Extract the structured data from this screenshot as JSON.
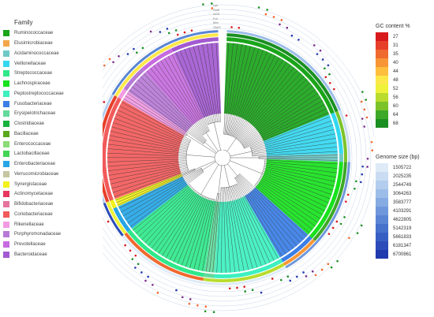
{
  "family_legend": {
    "title": "Family",
    "items": [
      {
        "label": "Ruminococcaceae",
        "color": "#1aa51a"
      },
      {
        "label": "Elusimicrobiaceae",
        "color": "#f2a64a"
      },
      {
        "label": "Acidaminococcaceae",
        "color": "#6ec9c6"
      },
      {
        "label": "Veillonellaceae",
        "color": "#34d7f0"
      },
      {
        "label": "Streptococcaceae",
        "color": "#2fe88a"
      },
      {
        "label": "Lachnospiraceae",
        "color": "#17e21d"
      },
      {
        "label": "Peptostreptococcaceae",
        "color": "#3df0c0"
      },
      {
        "label": "Fusobacteriaceae",
        "color": "#3a7ee6"
      },
      {
        "label": "Erysipelotrichaceae",
        "color": "#63d99b"
      },
      {
        "label": "Clostridiaceae",
        "color": "#19b23c"
      },
      {
        "label": "Bacillaceae",
        "color": "#5aa819"
      },
      {
        "label": "Enterococcaceae",
        "color": "#8bdc76"
      },
      {
        "label": "Lactobacillaceae",
        "color": "#41d653"
      },
      {
        "label": "Enterobacteriaceae",
        "color": "#26a6e6"
      },
      {
        "label": "Verrucomicrobiaceae",
        "color": "#c6c6a0"
      },
      {
        "label": "Synergistaceae",
        "color": "#f2f21a"
      },
      {
        "label": "Actinomycetaceae",
        "color": "#e8365e"
      },
      {
        "label": "Bifidobacteriaceae",
        "color": "#e6739e"
      },
      {
        "label": "Coriobacteriaceae",
        "color": "#f25a5a"
      },
      {
        "label": "Rikenellaceae",
        "color": "#f29ae4"
      },
      {
        "label": "Porphyromonadaceae",
        "color": "#b77ad6"
      },
      {
        "label": "Prevotellaceae",
        "color": "#c76be0"
      },
      {
        "label": "Bacteroidaceae",
        "color": "#a35ad1"
      }
    ]
  },
  "gc_legend": {
    "title": "GC content %",
    "items": [
      {
        "label": "27",
        "color": "#d7191c"
      },
      {
        "label": "31",
        "color": "#e7402a"
      },
      {
        "label": "35",
        "color": "#f0692f"
      },
      {
        "label": "40",
        "color": "#f89636"
      },
      {
        "label": "44",
        "color": "#fdbf3d"
      },
      {
        "label": "48",
        "color": "#fde84a"
      },
      {
        "label": "52",
        "color": "#eef23a"
      },
      {
        "label": "56",
        "color": "#b9dc2e"
      },
      {
        "label": "60",
        "color": "#7cc32a"
      },
      {
        "label": "64",
        "color": "#3da827"
      },
      {
        "label": "68",
        "color": "#1a8f22"
      }
    ]
  },
  "gs_legend": {
    "title": "Genome size (bp)",
    "items": [
      {
        "label": "1505722",
        "color": "#deebf7"
      },
      {
        "label": "2025235",
        "color": "#c9dcf2"
      },
      {
        "label": "2544749",
        "color": "#b3cdee"
      },
      {
        "label": "3064263",
        "color": "#9dbde9"
      },
      {
        "label": "3583777",
        "color": "#86abe3"
      },
      {
        "label": "4103291",
        "color": "#6f98dc"
      },
      {
        "label": "4622805",
        "color": "#5985d4"
      },
      {
        "label": "5142319",
        "color": "#4672cc"
      },
      {
        "label": "5661833",
        "color": "#375fc3"
      },
      {
        "label": "6181347",
        "color": "#2b4cb9"
      },
      {
        "label": "6700861",
        "color": "#2039ad"
      }
    ]
  },
  "ring_labels": [
    "Lys",
    "Sulfi",
    "AGS",
    "Fol",
    "Met",
    "OMO"
  ],
  "sectors": [
    {
      "family": "Ruminococcaceae",
      "start": 2,
      "end": 68,
      "color": "#1aa51a"
    },
    {
      "family": "Veillonellaceae",
      "start": 68,
      "end": 88,
      "color": "#34d7f0"
    },
    {
      "family": "Acidaminococcaceae",
      "start": 88,
      "end": 92,
      "color": "#6ec9c6"
    },
    {
      "family": "Lachnospiraceae",
      "start": 92,
      "end": 132,
      "color": "#17e21d"
    },
    {
      "family": "Fusobacteriaceae",
      "start": 132,
      "end": 150,
      "color": "#3a7ee6"
    },
    {
      "family": "Peptostreptococcaceae",
      "start": 150,
      "end": 184,
      "color": "#3df0c0"
    },
    {
      "family": "Erysipelotrichaceae",
      "start": 184,
      "end": 189,
      "color": "#63d99b"
    },
    {
      "family": "Streptococcaceae",
      "start": 189,
      "end": 232,
      "color": "#2fe88a"
    },
    {
      "family": "Enterobacteriaceae",
      "start": 232,
      "end": 245,
      "color": "#26a6e6"
    },
    {
      "family": "Synergistaceae",
      "start": 245,
      "end": 249,
      "color": "#f2f21a"
    },
    {
      "family": "Coriobacteriaceae",
      "start": 249,
      "end": 300,
      "color": "#f25a5a"
    },
    {
      "family": "Rikenellaceae",
      "start": 300,
      "end": 305,
      "color": "#f29ae4"
    },
    {
      "family": "Porphyromonadaceae",
      "start": 305,
      "end": 318,
      "color": "#b77ad6"
    },
    {
      "family": "Prevotellaceae",
      "start": 318,
      "end": 335,
      "color": "#c76be0"
    },
    {
      "family": "Bacteroidaceae",
      "start": 335,
      "end": 358,
      "color": "#a35ad1"
    }
  ],
  "gc_ring": [
    {
      "start": 2,
      "end": 68,
      "color": "#1a8f22"
    },
    {
      "start": 68,
      "end": 92,
      "color": "#7cc32a"
    },
    {
      "start": 92,
      "end": 132,
      "color": "#3da827"
    },
    {
      "start": 132,
      "end": 150,
      "color": "#f89636"
    },
    {
      "start": 150,
      "end": 189,
      "color": "#b9dc2e"
    },
    {
      "start": 189,
      "end": 232,
      "color": "#f0692f"
    },
    {
      "start": 232,
      "end": 249,
      "color": "#eef23a"
    },
    {
      "start": 249,
      "end": 300,
      "color": "#e7402a"
    },
    {
      "start": 300,
      "end": 358,
      "color": "#fde84a"
    }
  ],
  "gs_ring": [
    {
      "start": 2,
      "end": 68,
      "color": "#9dbde9"
    },
    {
      "start": 68,
      "end": 92,
      "color": "#c9dcf2"
    },
    {
      "start": 92,
      "end": 150,
      "color": "#6f98dc"
    },
    {
      "start": 150,
      "end": 232,
      "color": "#deebf7"
    },
    {
      "start": 232,
      "end": 249,
      "color": "#2b4cb9"
    },
    {
      "start": 249,
      "end": 300,
      "color": "#b3cdee"
    },
    {
      "start": 300,
      "end": 358,
      "color": "#5985d4"
    }
  ]
}
